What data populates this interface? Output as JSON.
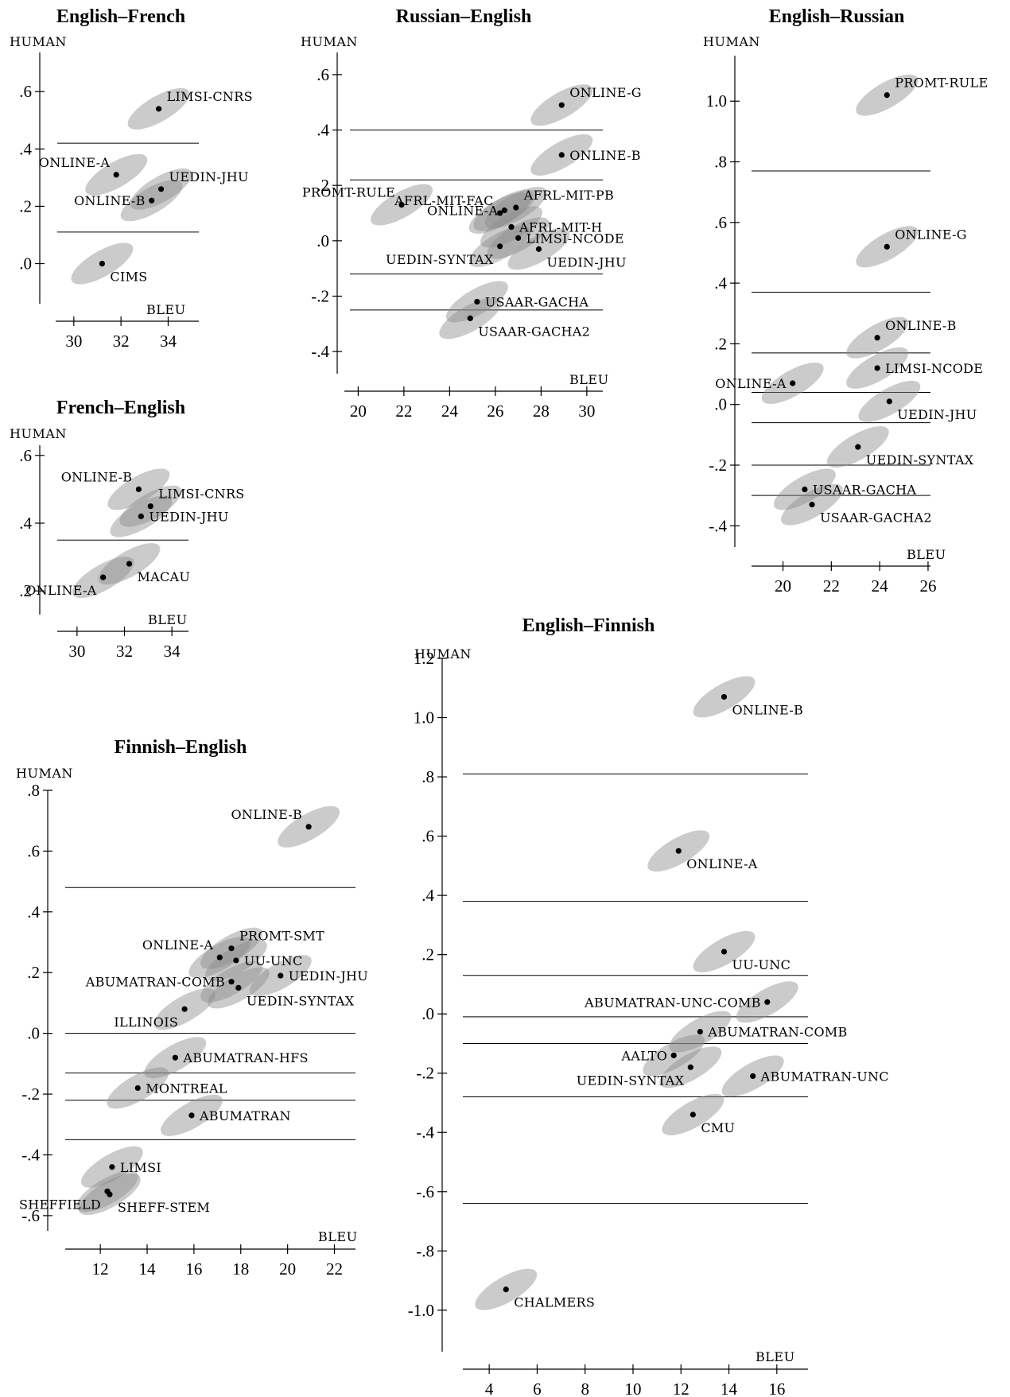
{
  "chart_data": [
    {
      "type": "scatter",
      "title": "English–French",
      "xlabel": "BLEU",
      "ylabel": "HUMAN",
      "xticks": [
        30,
        32,
        34
      ],
      "yticks": [
        0.6,
        0.4,
        0.2,
        0.0
      ],
      "ytick_labels": [
        ".6",
        ".4",
        ".2",
        ".0"
      ],
      "xlim": [
        29.5,
        35.3
      ],
      "ylim": [
        -0.14,
        0.67
      ],
      "cluster_lines": [
        0.42,
        0.11
      ],
      "points": [
        {
          "label": "LIMSI-CNRS",
          "x": 33.6,
          "y": 0.54,
          "label_pos": "upper-right"
        },
        {
          "label": "ONLINE-A",
          "x": 31.8,
          "y": 0.31,
          "label_pos": "upper-left"
        },
        {
          "label": "UEDIN-JHU",
          "x": 33.7,
          "y": 0.26,
          "label_pos": "upper-right"
        },
        {
          "label": "ONLINE-B",
          "x": 33.3,
          "y": 0.22,
          "label_pos": "left"
        },
        {
          "label": "CIMS",
          "x": 31.2,
          "y": 0.0,
          "label_pos": "lower-right"
        }
      ]
    },
    {
      "type": "scatter",
      "title": "Russian–English",
      "xlabel": "BLEU",
      "ylabel": "HUMAN",
      "xticks": [
        20,
        22,
        24,
        26,
        28,
        30
      ],
      "yticks": [
        0.6,
        0.4,
        0.2,
        0.0,
        -0.2,
        -0.4
      ],
      "ytick_labels": [
        ".6",
        ".4",
        ".2",
        ".0",
        "-.2",
        "-.4"
      ],
      "xlim": [
        19.5,
        30.7
      ],
      "ylim": [
        -0.48,
        0.68
      ],
      "cluster_lines": [
        0.4,
        0.22,
        -0.12,
        -0.25
      ],
      "points": [
        {
          "label": "ONLINE-G",
          "x": 28.9,
          "y": 0.49,
          "label_pos": "upper-right"
        },
        {
          "label": "ONLINE-B",
          "x": 28.9,
          "y": 0.31,
          "label_pos": "right"
        },
        {
          "label": "PROMT-RULE",
          "x": 21.9,
          "y": 0.13,
          "label_pos": "upper-left"
        },
        {
          "label": "AFRL-MIT-FAC",
          "x": 26.2,
          "y": 0.1,
          "label_pos": "upper-left"
        },
        {
          "label": "ONLINE-A",
          "x": 26.4,
          "y": 0.11,
          "label_pos": "left"
        },
        {
          "label": "AFRL-MIT-PB",
          "x": 26.9,
          "y": 0.12,
          "label_pos": "upper-right"
        },
        {
          "label": "AFRL-MIT-H",
          "x": 26.7,
          "y": 0.05,
          "label_pos": "right"
        },
        {
          "label": "LIMSI-NCODE",
          "x": 27.0,
          "y": 0.01,
          "label_pos": "right"
        },
        {
          "label": "UEDIN-SYNTAX",
          "x": 26.2,
          "y": -0.02,
          "label_pos": "lower-left"
        },
        {
          "label": "UEDIN-JHU",
          "x": 27.9,
          "y": -0.03,
          "label_pos": "lower-right"
        },
        {
          "label": "USAAR-GACHA",
          "x": 25.2,
          "y": -0.22,
          "label_pos": "right"
        },
        {
          "label": "USAAR-GACHA2",
          "x": 24.9,
          "y": -0.28,
          "label_pos": "lower-right"
        }
      ]
    },
    {
      "type": "scatter",
      "title": "English–Russian",
      "xlabel": "BLEU",
      "ylabel": "HUMAN",
      "xticks": [
        20,
        22,
        24,
        26
      ],
      "yticks": [
        1.0,
        0.8,
        0.6,
        0.4,
        0.2,
        0.0,
        -0.2,
        -0.4
      ],
      "ytick_labels": [
        "1.0",
        ".8",
        ".6",
        ".4",
        ".2",
        ".0",
        "-.2",
        "-.4"
      ],
      "xlim": [
        18.7,
        26.1
      ],
      "ylim": [
        -0.47,
        1.15
      ],
      "cluster_lines": [
        0.77,
        0.37,
        0.17,
        0.04,
        -0.06,
        -0.2,
        -0.3
      ],
      "points": [
        {
          "label": "PROMT-RULE",
          "x": 24.3,
          "y": 1.02,
          "label_pos": "upper-right"
        },
        {
          "label": "ONLINE-G",
          "x": 24.3,
          "y": 0.52,
          "label_pos": "upper-right"
        },
        {
          "label": "ONLINE-B",
          "x": 23.9,
          "y": 0.22,
          "label_pos": "upper-right"
        },
        {
          "label": "LIMSI-NCODE",
          "x": 23.9,
          "y": 0.12,
          "label_pos": "right"
        },
        {
          "label": "ONLINE-A",
          "x": 20.4,
          "y": 0.07,
          "label_pos": "left"
        },
        {
          "label": "UEDIN-JHU",
          "x": 24.4,
          "y": 0.01,
          "label_pos": "lower-right"
        },
        {
          "label": "UEDIN-SYNTAX",
          "x": 23.1,
          "y": -0.14,
          "label_pos": "lower-right"
        },
        {
          "label": "USAAR-GACHA",
          "x": 20.9,
          "y": -0.28,
          "label_pos": "right"
        },
        {
          "label": "USAAR-GACHA2",
          "x": 21.2,
          "y": -0.33,
          "label_pos": "lower-right"
        }
      ]
    },
    {
      "type": "scatter",
      "title": "French–English",
      "xlabel": "BLEU",
      "ylabel": "HUMAN",
      "xticks": [
        30,
        32,
        34
      ],
      "yticks": [
        0.6,
        0.4,
        0.2
      ],
      "ytick_labels": [
        ".6",
        ".4",
        ".2"
      ],
      "xlim": [
        29.3,
        34.7
      ],
      "ylim": [
        0.13,
        0.63
      ],
      "cluster_lines": [
        0.35
      ],
      "points": [
        {
          "label": "ONLINE-B",
          "x": 32.6,
          "y": 0.5,
          "label_pos": "upper-left"
        },
        {
          "label": "LIMSI-CNRS",
          "x": 33.1,
          "y": 0.45,
          "label_pos": "upper-right"
        },
        {
          "label": "UEDIN-JHU",
          "x": 32.7,
          "y": 0.42,
          "label_pos": "right"
        },
        {
          "label": "MACAU",
          "x": 32.2,
          "y": 0.28,
          "label_pos": "lower-right"
        },
        {
          "label": "ONLINE-A",
          "x": 31.1,
          "y": 0.24,
          "label_pos": "lower-left"
        }
      ]
    },
    {
      "type": "scatter",
      "title": "English–Finnish",
      "xlabel": "BLEU",
      "ylabel": "HUMAN",
      "xticks": [
        4,
        6,
        8,
        10,
        12,
        14,
        16
      ],
      "yticks": [
        1.2,
        1.0,
        0.8,
        0.6,
        0.4,
        0.2,
        0.0,
        -0.2,
        -0.4,
        -0.6,
        -0.8,
        -1.0
      ],
      "ytick_labels": [
        "1.2",
        "1.0",
        ".8",
        ".6",
        ".4",
        ".2",
        ".0",
        "-.2",
        "-.4",
        "-.6",
        "-.8",
        "-1.0"
      ],
      "xlim": [
        2.9,
        17.3
      ],
      "ylim": [
        -1.14,
        1.2
      ],
      "cluster_lines": [
        0.81,
        0.38,
        0.13,
        -0.01,
        -0.1,
        -0.28,
        -0.64
      ],
      "points": [
        {
          "label": "ONLINE-B",
          "x": 13.8,
          "y": 1.07,
          "label_pos": "lower-right"
        },
        {
          "label": "ONLINE-A",
          "x": 11.9,
          "y": 0.55,
          "label_pos": "lower-right"
        },
        {
          "label": "UU-UNC",
          "x": 13.8,
          "y": 0.21,
          "label_pos": "lower-right"
        },
        {
          "label": "ABUMATRAN-UNC-COMB",
          "x": 15.6,
          "y": 0.04,
          "label_pos": "left"
        },
        {
          "label": "ABUMATRAN-COMB",
          "x": 12.8,
          "y": -0.06,
          "label_pos": "right"
        },
        {
          "label": "AALTO",
          "x": 11.7,
          "y": -0.14,
          "label_pos": "left"
        },
        {
          "label": "UEDIN-SYNTAX",
          "x": 12.4,
          "y": -0.18,
          "label_pos": "lower-left"
        },
        {
          "label": "ABUMATRAN-UNC",
          "x": 15.0,
          "y": -0.21,
          "label_pos": "right"
        },
        {
          "label": "CMU",
          "x": 12.5,
          "y": -0.34,
          "label_pos": "lower-right"
        },
        {
          "label": "CHALMERS",
          "x": 4.7,
          "y": -0.93,
          "label_pos": "lower-right"
        }
      ]
    },
    {
      "type": "scatter",
      "title": "Finnish–English",
      "xlabel": "BLEU",
      "ylabel": "HUMAN",
      "xticks": [
        12,
        14,
        16,
        18,
        20,
        22
      ],
      "yticks": [
        0.8,
        0.6,
        0.4,
        0.2,
        0.0,
        -0.2,
        -0.4,
        -0.6
      ],
      "ytick_labels": [
        ".8",
        ".6",
        ".4",
        ".2",
        ".0",
        "-.2",
        "-.4",
        "-.6"
      ],
      "xlim": [
        10.5,
        22.9
      ],
      "ylim": [
        -0.65,
        0.8
      ],
      "cluster_lines": [
        0.48,
        0.0,
        -0.13,
        -0.22,
        -0.35
      ],
      "points": [
        {
          "label": "ONLINE-B",
          "x": 20.9,
          "y": 0.68,
          "label_pos": "upper-left"
        },
        {
          "label": "PROMT-SMT",
          "x": 17.6,
          "y": 0.28,
          "label_pos": "upper-right"
        },
        {
          "label": "ONLINE-A",
          "x": 17.1,
          "y": 0.25,
          "label_pos": "upper-left"
        },
        {
          "label": "UU-UNC",
          "x": 17.8,
          "y": 0.24,
          "label_pos": "right"
        },
        {
          "label": "UEDIN-JHU",
          "x": 19.7,
          "y": 0.19,
          "label_pos": "right"
        },
        {
          "label": "ABUMATRAN-COMB",
          "x": 17.6,
          "y": 0.17,
          "label_pos": "left"
        },
        {
          "label": "UEDIN-SYNTAX",
          "x": 17.9,
          "y": 0.15,
          "label_pos": "lower-right"
        },
        {
          "label": "ILLINOIS",
          "x": 15.6,
          "y": 0.08,
          "label_pos": "lower-left"
        },
        {
          "label": "ABUMATRAN-HFS",
          "x": 15.2,
          "y": -0.08,
          "label_pos": "right"
        },
        {
          "label": "MONTREAL",
          "x": 13.6,
          "y": -0.18,
          "label_pos": "right"
        },
        {
          "label": "ABUMATRAN",
          "x": 15.9,
          "y": -0.27,
          "label_pos": "right"
        },
        {
          "label": "LIMSI",
          "x": 12.5,
          "y": -0.44,
          "label_pos": "right"
        },
        {
          "label": "SHEFFIELD",
          "x": 12.3,
          "y": -0.52,
          "label_pos": "lower-left"
        },
        {
          "label": "SHEFF-STEM",
          "x": 12.4,
          "y": -0.53,
          "label_pos": "lower-right"
        }
      ]
    }
  ]
}
